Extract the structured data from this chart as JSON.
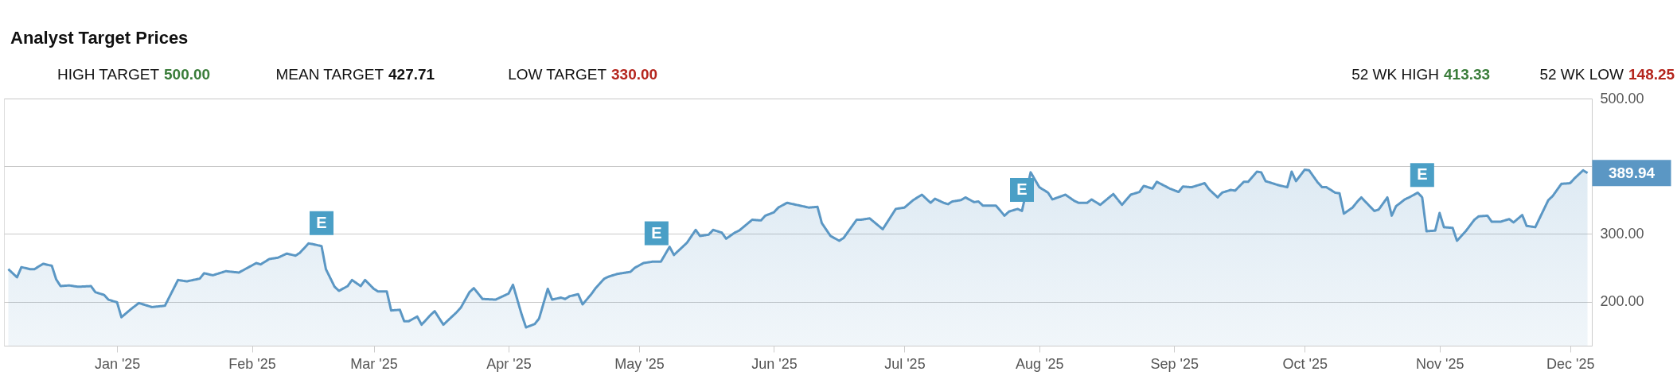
{
  "chart_data": {
    "type": "area",
    "title": "Analyst Target Prices",
    "annotations": [
      "HIGH TARGET 500.00",
      "MEAN TARGET 427.71",
      "LOW TARGET 330.00",
      "52 WK HIGH 413.33",
      "52 WK LOW 148.25",
      {
        "text": "E",
        "x": "2025-02-17",
        "y": 316
      },
      {
        "text": "E",
        "x": "2025-05-05",
        "y": 301
      },
      {
        "text": "E",
        "x": "2025-07-28",
        "y": 365
      },
      {
        "text": "E",
        "x": "2025-10-28",
        "y": 387
      },
      {
        "text": "389.94",
        "x": "2025-12-05",
        "y": 389.94
      }
    ],
    "x": [
      "2024-12-07",
      "2024-12-09",
      "2024-12-10",
      "2024-12-12",
      "2024-12-13",
      "2024-12-15",
      "2024-12-17",
      "2024-12-18",
      "2024-12-19",
      "2024-12-21",
      "2024-12-23",
      "2024-12-26",
      "2024-12-27",
      "2024-12-29",
      "2024-12-30",
      "2025-01-01",
      "2025-01-02",
      "2025-01-04",
      "2025-01-06",
      "2025-01-07",
      "2025-01-09",
      "2025-01-12",
      "2025-01-15",
      "2025-01-17",
      "2025-01-20",
      "2025-01-21",
      "2025-01-23",
      "2025-01-26",
      "2025-01-29",
      "2025-01-31",
      "2025-02-02",
      "2025-02-03",
      "2025-02-05",
      "2025-02-07",
      "2025-02-09",
      "2025-02-11",
      "2025-02-12",
      "2025-02-14",
      "2025-02-15",
      "2025-02-17",
      "2025-02-18",
      "2025-02-20",
      "2025-02-21",
      "2025-02-23",
      "2025-02-24",
      "2025-02-26",
      "2025-02-27",
      "2025-03-01",
      "2025-03-02",
      "2025-03-04",
      "2025-03-05",
      "2025-03-07",
      "2025-03-08",
      "2025-03-09",
      "2025-03-11",
      "2025-03-12",
      "2025-03-14",
      "2025-03-15",
      "2025-03-17",
      "2025-03-20",
      "2025-03-21",
      "2025-03-23",
      "2025-03-24",
      "2025-03-26",
      "2025-03-29",
      "2025-04-01",
      "2025-04-02",
      "2025-04-04",
      "2025-04-05",
      "2025-04-07",
      "2025-04-08",
      "2025-04-10",
      "2025-04-11",
      "2025-04-13",
      "2025-04-14",
      "2025-04-15",
      "2025-04-17",
      "2025-04-18",
      "2025-04-20",
      "2025-04-21",
      "2025-04-23",
      "2025-04-24",
      "2025-04-26",
      "2025-04-29",
      "2025-04-30",
      "2025-05-02",
      "2025-05-04",
      "2025-05-06",
      "2025-05-08",
      "2025-05-09",
      "2025-05-12",
      "2025-05-14",
      "2025-05-15",
      "2025-05-17",
      "2025-05-18",
      "2025-05-20",
      "2025-05-21",
      "2025-05-23",
      "2025-05-24",
      "2025-05-27",
      "2025-05-29",
      "2025-05-30",
      "2025-06-01",
      "2025-06-02",
      "2025-06-04",
      "2025-06-09",
      "2025-06-11",
      "2025-06-12",
      "2025-06-14",
      "2025-06-16",
      "2025-06-17",
      "2025-06-20",
      "2025-06-21",
      "2025-06-23",
      "2025-06-26",
      "2025-06-29",
      "2025-07-01",
      "2025-07-03",
      "2025-07-05",
      "2025-07-07",
      "2025-07-08",
      "2025-07-10",
      "2025-07-11",
      "2025-07-12",
      "2025-07-14",
      "2025-07-15",
      "2025-07-17",
      "2025-07-18",
      "2025-07-19",
      "2025-07-22",
      "2025-07-24",
      "2025-07-25",
      "2025-07-27",
      "2025-07-28",
      "2025-07-30",
      "2025-08-01",
      "2025-08-03",
      "2025-08-04",
      "2025-08-07",
      "2025-08-09",
      "2025-08-10",
      "2025-08-12",
      "2025-08-13",
      "2025-08-15",
      "2025-08-18",
      "2025-08-20",
      "2025-08-22",
      "2025-08-24",
      "2025-08-25",
      "2025-08-27",
      "2025-08-28",
      "2025-08-31",
      "2025-09-02",
      "2025-09-03",
      "2025-09-05",
      "2025-09-08",
      "2025-09-09",
      "2025-09-11",
      "2025-09-12",
      "2025-09-14",
      "2025-09-15",
      "2025-09-17",
      "2025-09-18",
      "2025-09-20",
      "2025-09-21",
      "2025-09-22",
      "2025-09-25",
      "2025-09-27",
      "2025-09-28",
      "2025-09-29",
      "2025-10-01",
      "2025-10-02",
      "2025-10-04",
      "2025-10-05",
      "2025-10-06",
      "2025-10-08",
      "2025-10-09",
      "2025-10-10",
      "2025-10-12",
      "2025-10-13",
      "2025-10-14",
      "2025-10-17",
      "2025-10-18",
      "2025-10-20",
      "2025-10-21",
      "2025-10-22",
      "2025-10-24",
      "2025-10-25",
      "2025-10-27",
      "2025-10-28",
      "2025-10-29",
      "2025-10-31",
      "2025-11-01",
      "2025-11-02",
      "2025-11-04",
      "2025-11-05",
      "2025-11-07",
      "2025-11-09",
      "2025-11-10",
      "2025-11-12",
      "2025-11-13",
      "2025-11-15",
      "2025-11-17",
      "2025-11-18",
      "2025-11-20",
      "2025-11-21",
      "2025-11-23",
      "2025-11-26",
      "2025-11-27",
      "2025-11-29",
      "2025-12-01",
      "2025-12-02",
      "2025-12-04",
      "2025-12-05"
    ],
    "series": [
      {
        "color": "#5b97c4",
        "values": [
          248,
          236,
          251,
          248,
          248,
          256,
          253,
          233,
          223,
          224,
          222,
          223,
          214,
          210,
          203,
          199,
          177,
          188,
          198,
          196,
          192,
          194,
          232,
          230,
          234,
          242,
          239,
          245,
          243,
          250,
          257,
          255,
          263,
          265,
          271,
          268,
          272,
          286,
          285,
          282,
          248,
          222,
          216,
          223,
          232,
          223,
          232,
          219,
          215,
          215,
          187,
          188,
          171,
          171,
          178,
          166,
          180,
          186,
          166,
          184,
          191,
          214,
          220,
          204,
          203,
          212,
          225,
          181,
          162,
          167,
          175,
          219,
          203,
          206,
          204,
          208,
          211,
          196,
          211,
          220,
          234,
          237,
          241,
          244,
          250,
          257,
          259,
          259,
          281,
          269,
          287,
          306,
          297,
          299,
          306,
          302,
          293,
          302,
          305,
          321,
          320,
          327,
          332,
          339,
          346,
          339,
          340,
          316,
          297,
          290,
          294,
          321,
          321,
          323,
          307,
          337,
          339,
          350,
          358,
          346,
          352,
          346,
          344,
          348,
          350,
          354,
          347,
          348,
          342,
          342,
          327,
          333,
          337,
          334,
          391,
          369,
          361,
          351,
          358,
          349,
          346,
          346,
          351,
          343,
          359,
          343,
          358,
          362,
          371,
          367,
          377,
          367,
          362,
          370,
          369,
          375,
          366,
          354,
          361,
          365,
          364,
          377,
          377,
          392,
          391,
          378,
          372,
          369,
          392,
          378,
          395,
          394,
          376,
          369,
          369,
          361,
          360,
          330,
          339,
          347,
          354,
          334,
          336,
          354,
          327,
          341,
          351,
          354,
          361,
          354,
          304,
          305,
          331,
          310,
          309,
          290,
          304,
          321,
          326,
          327,
          318,
          318,
          322,
          317,
          328,
          312,
          310,
          350,
          356,
          374,
          375,
          382,
          394,
          389.94
        ]
      }
    ],
    "xlim": [
      "2024-12-06",
      "2025-12-06"
    ],
    "xticks": [
      {
        "value": "2025-01-01",
        "label": "Jan '25"
      },
      {
        "value": "2025-02-01",
        "label": "Feb '25"
      },
      {
        "value": "2025-03-01",
        "label": "Mar '25"
      },
      {
        "value": "2025-04-01",
        "label": "Apr '25"
      },
      {
        "value": "2025-05-01",
        "label": "May '25"
      },
      {
        "value": "2025-06-01",
        "label": "Jun '25"
      },
      {
        "value": "2025-07-01",
        "label": "Jul '25"
      },
      {
        "value": "2025-08-01",
        "label": "Aug '25"
      },
      {
        "value": "2025-09-01",
        "label": "Sep '25"
      },
      {
        "value": "2025-10-01",
        "label": "Oct '25"
      },
      {
        "value": "2025-11-01",
        "label": "Nov '25"
      },
      {
        "value": "2025-12-01",
        "label": "Dec '25"
      }
    ],
    "ylim": [
      135,
      500
    ],
    "yticks": [
      {
        "value": 200,
        "label": "200.00"
      },
      {
        "value": 300,
        "label": "300.00"
      },
      {
        "value": 400,
        "label": null
      },
      {
        "value": 500,
        "label": "500.00"
      }
    ],
    "grid": "y",
    "marker": "none",
    "line_style": "solid"
  }
}
